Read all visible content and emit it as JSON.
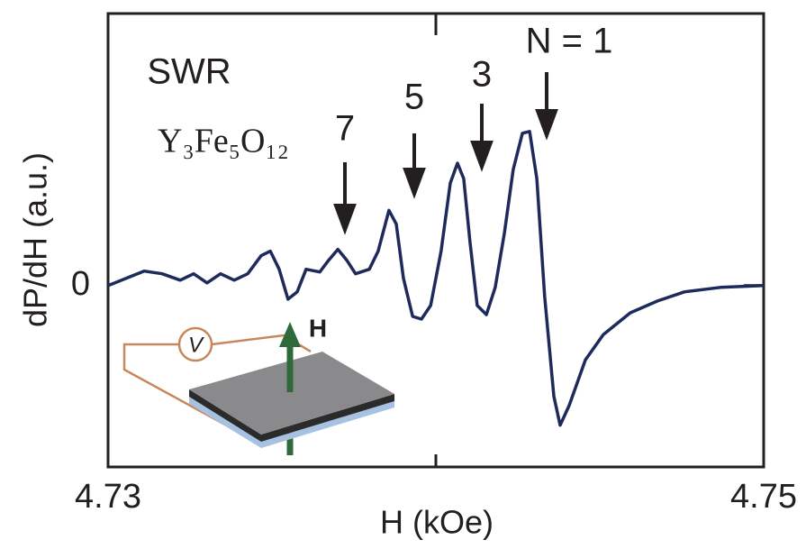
{
  "chart_data": {
    "type": "line",
    "x_label": "H (kOe)",
    "y_label": "dP/dH (a.u.)",
    "xlim": [
      4.73,
      4.75
    ],
    "xticks": [
      4.73,
      4.75
    ],
    "minor_xticks": [
      4.74
    ],
    "ylim": [
      -2,
      3
    ],
    "yticks": [
      0
    ],
    "series": [
      {
        "name": "SWR",
        "color": "#1f2a5c",
        "x": [
          4.73,
          4.73055,
          4.7311,
          4.73165,
          4.7322,
          4.73261,
          4.73302,
          4.73343,
          4.73385,
          4.73426,
          4.73467,
          4.73495,
          4.73522,
          4.73549,
          4.73577,
          4.73604,
          4.73646,
          4.73673,
          4.73701,
          4.73728,
          4.73755,
          4.73797,
          4.73824,
          4.73857,
          4.73879,
          4.73901,
          4.73929,
          4.73956,
          4.73984,
          4.74016,
          4.74044,
          4.74066,
          4.74085,
          4.74104,
          4.74126,
          4.74154,
          4.74181,
          4.74209,
          4.74236,
          4.74264,
          4.74286,
          4.74308,
          4.74332,
          4.7436,
          4.74379,
          4.74407,
          4.74456,
          4.74511,
          4.74593,
          4.74676,
          4.74758,
          4.74868,
          4.75
        ],
        "values": [
          0,
          0.08,
          0.16,
          0.13,
          0.06,
          0.13,
          0.03,
          0.13,
          0.06,
          0.13,
          0.33,
          0.38,
          0.18,
          -0.15,
          -0.07,
          0.18,
          0.15,
          0.28,
          0.4,
          0.28,
          0.13,
          0.18,
          0.38,
          0.83,
          0.68,
          0.08,
          -0.34,
          -0.37,
          -0.22,
          0.38,
          1.13,
          1.35,
          1.18,
          0.48,
          -0.22,
          -0.32,
          -0.02,
          0.58,
          1.28,
          1.68,
          1.7,
          1.18,
          -0.12,
          -1.22,
          -1.54,
          -1.32,
          -0.82,
          -0.54,
          -0.3,
          -0.17,
          -0.07,
          -0.02,
          0
        ]
      }
    ],
    "annotations": [
      "SWR",
      "Y₃Fe₅O₁₂",
      "7",
      "5",
      "3",
      "N = 1"
    ],
    "inset": {
      "field_label": "H",
      "meter_label": "V"
    }
  }
}
